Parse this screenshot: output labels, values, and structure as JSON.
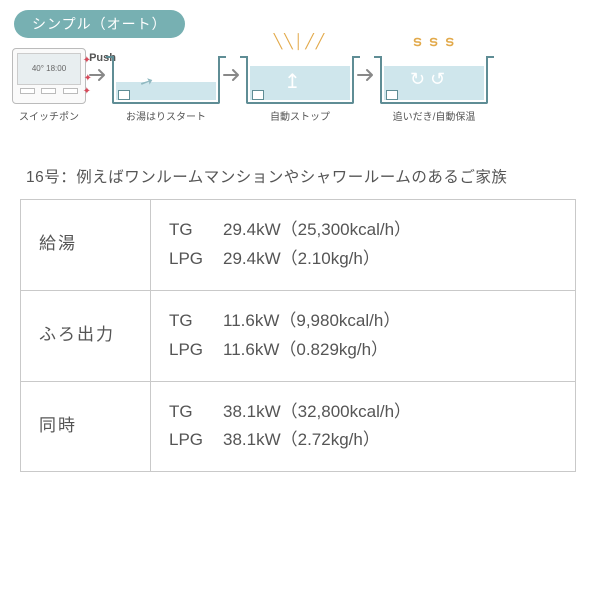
{
  "colors": {
    "badge_bg": "#77b0b2",
    "tub_stroke": "#5f8d95",
    "water_fill": "#cfe6ec",
    "sun_decor": "#e2a94a",
    "wave_decor": "#e2a94a",
    "table_border": "#c9c9c9",
    "text": "#555555",
    "arrow": "#888888"
  },
  "badge": "シンプル（オート）",
  "push_label": "Push",
  "flow": {
    "remote_caption": "スイッチポン",
    "remote_display_top": "40° 18:00",
    "step1_caption": "お湯はりスタート",
    "step2_caption": "自動ストップ",
    "step3_caption": "追いだき/自動保温",
    "sun_glyph": "╲╲│╱╱",
    "wave_glyph": "ട ട ട"
  },
  "subtitle": "16号：例えばワンルームマンションやシャワールームのあるご家族",
  "table": {
    "rows": [
      {
        "head": "給湯",
        "lines": [
          {
            "fuel": "TG",
            "value": "29.4kW（25,300kcal/h）"
          },
          {
            "fuel": "LPG",
            "value": "29.4kW（2.10kg/h）"
          }
        ]
      },
      {
        "head": "ふろ出力",
        "lines": [
          {
            "fuel": "TG",
            "value": "11.6kW（9,980kcal/h）"
          },
          {
            "fuel": "LPG",
            "value": "11.6kW（0.829kg/h）"
          }
        ]
      },
      {
        "head": "同時",
        "lines": [
          {
            "fuel": "TG",
            "value": "38.1kW（32,800kcal/h）"
          },
          {
            "fuel": "LPG",
            "value": "38.1kW（2.72kg/h）"
          }
        ]
      }
    ]
  }
}
